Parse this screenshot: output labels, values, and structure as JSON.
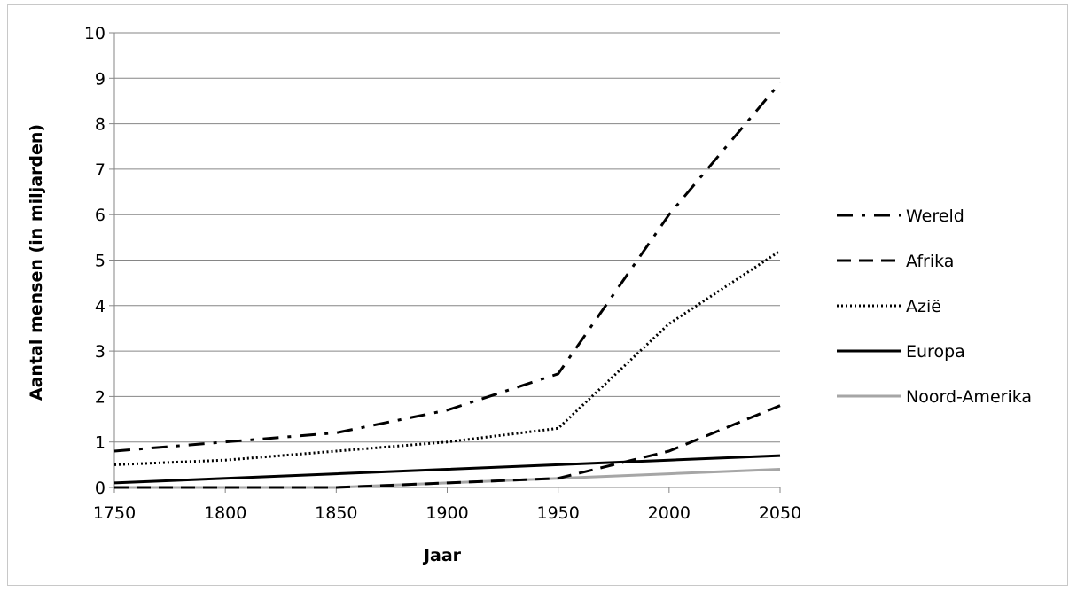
{
  "chart_data": {
    "type": "line",
    "title": "",
    "xlabel": "Jaar",
    "ylabel": "Aantal mensen (in miljarden)",
    "xlim": [
      1750,
      2050
    ],
    "ylim": [
      0,
      10
    ],
    "x_ticks": [
      1750,
      1800,
      1850,
      1900,
      1950,
      2000,
      2050
    ],
    "y_ticks": [
      0,
      1,
      2,
      3,
      4,
      5,
      6,
      7,
      8,
      9,
      10
    ],
    "grid": "horizontal",
    "legend_position": "right",
    "series": [
      {
        "name": "Wereld",
        "style": "dash-dot",
        "color": "#000000",
        "points": [
          [
            1750,
            0.8
          ],
          [
            1800,
            1.0
          ],
          [
            1850,
            1.2
          ],
          [
            1900,
            1.7
          ],
          [
            1950,
            2.5
          ],
          [
            2000,
            6.0
          ],
          [
            2050,
            8.9
          ]
        ]
      },
      {
        "name": "Afrika",
        "style": "dashed",
        "color": "#000000",
        "points": [
          [
            1750,
            0.0
          ],
          [
            1800,
            0.0
          ],
          [
            1850,
            0.0
          ],
          [
            1900,
            0.1
          ],
          [
            1950,
            0.2
          ],
          [
            2000,
            0.8
          ],
          [
            2050,
            1.8
          ]
        ]
      },
      {
        "name": "Azië",
        "style": "dotted",
        "color": "#000000",
        "points": [
          [
            1750,
            0.5
          ],
          [
            1800,
            0.6
          ],
          [
            1850,
            0.8
          ],
          [
            1900,
            1.0
          ],
          [
            1950,
            1.3
          ],
          [
            2000,
            3.6
          ],
          [
            2050,
            5.2
          ]
        ]
      },
      {
        "name": "Europa",
        "style": "solid",
        "color": "#000000",
        "points": [
          [
            1750,
            0.1
          ],
          [
            1800,
            0.2
          ],
          [
            1850,
            0.3
          ],
          [
            1900,
            0.4
          ],
          [
            1950,
            0.5
          ],
          [
            2000,
            0.6
          ],
          [
            2050,
            0.7
          ]
        ]
      },
      {
        "name": "Noord-Amerika",
        "style": "solid",
        "color": "#a6a6a6",
        "points": [
          [
            1750,
            0.0
          ],
          [
            1800,
            0.0
          ],
          [
            1850,
            0.0
          ],
          [
            1900,
            0.1
          ],
          [
            1950,
            0.2
          ],
          [
            2000,
            0.3
          ],
          [
            2050,
            0.4
          ]
        ]
      }
    ]
  }
}
